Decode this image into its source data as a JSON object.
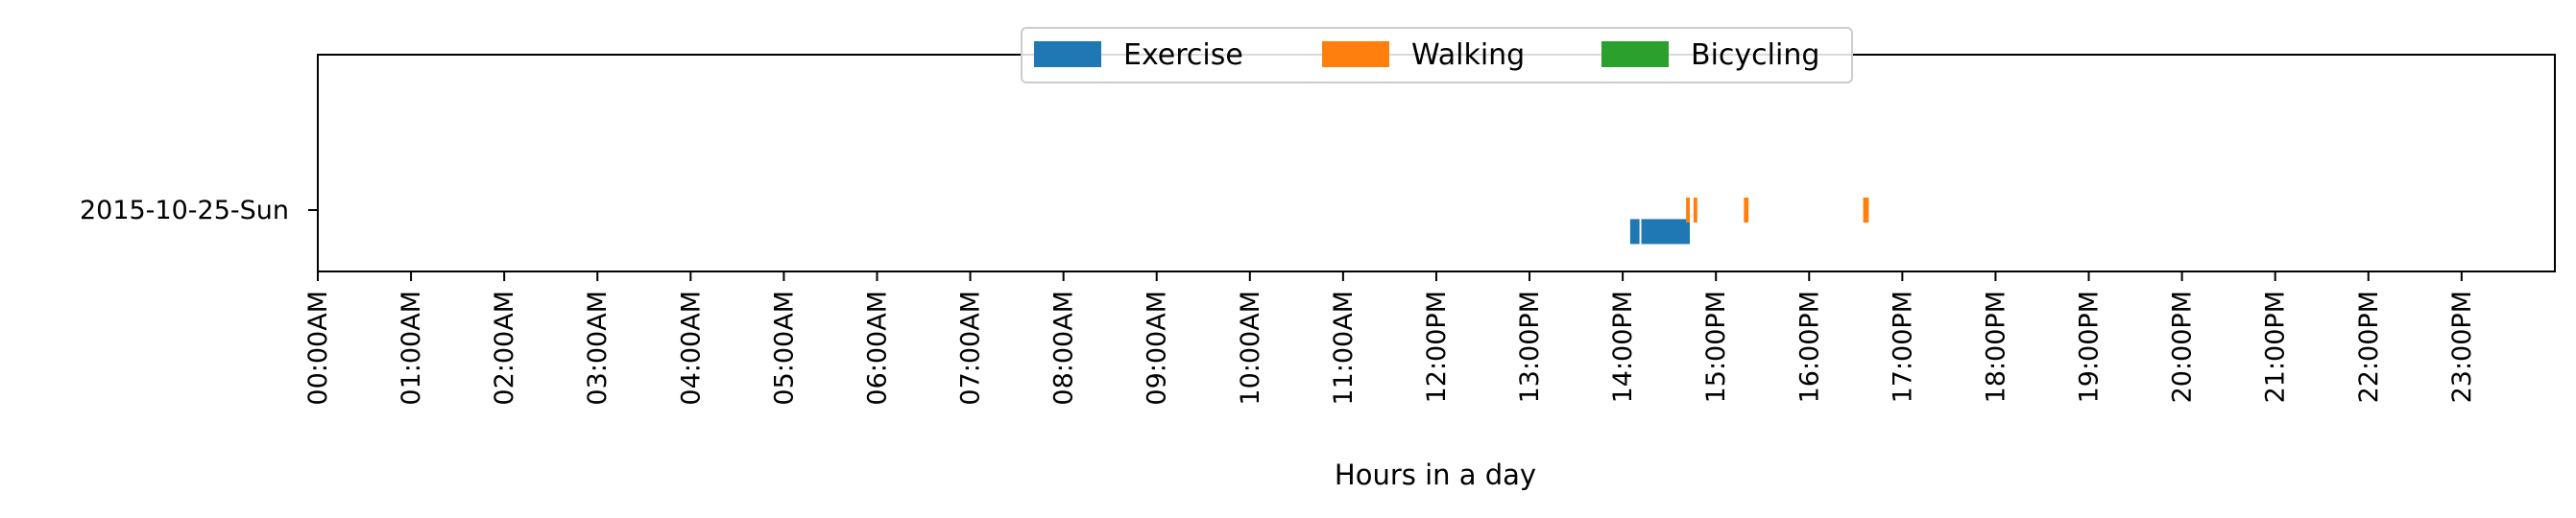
{
  "chart_data": {
    "type": "timeline",
    "xlabel": "Hours in a day",
    "ylabel": "",
    "xlim": [
      0,
      24
    ],
    "x_ticks": [
      {
        "value": 0,
        "label": "00:00AM"
      },
      {
        "value": 1,
        "label": "01:00AM"
      },
      {
        "value": 2,
        "label": "02:00AM"
      },
      {
        "value": 3,
        "label": "03:00AM"
      },
      {
        "value": 4,
        "label": "04:00AM"
      },
      {
        "value": 5,
        "label": "05:00AM"
      },
      {
        "value": 6,
        "label": "06:00AM"
      },
      {
        "value": 7,
        "label": "07:00AM"
      },
      {
        "value": 8,
        "label": "08:00AM"
      },
      {
        "value": 9,
        "label": "09:00AM"
      },
      {
        "value": 10,
        "label": "10:00AM"
      },
      {
        "value": 11,
        "label": "11:00AM"
      },
      {
        "value": 12,
        "label": "12:00PM"
      },
      {
        "value": 13,
        "label": "13:00PM"
      },
      {
        "value": 14,
        "label": "14:00PM"
      },
      {
        "value": 15,
        "label": "15:00PM"
      },
      {
        "value": 16,
        "label": "16:00PM"
      },
      {
        "value": 17,
        "label": "17:00PM"
      },
      {
        "value": 18,
        "label": "18:00PM"
      },
      {
        "value": 19,
        "label": "19:00PM"
      },
      {
        "value": 20,
        "label": "20:00PM"
      },
      {
        "value": 21,
        "label": "21:00PM"
      },
      {
        "value": 22,
        "label": "22:00PM"
      },
      {
        "value": 23,
        "label": "23:00PM"
      }
    ],
    "rows": [
      "2015-10-25-Sun"
    ],
    "legend_position": "top-center",
    "grid": false,
    "series": [
      {
        "name": "Exercise",
        "color": "#1f77b4",
        "row_offset": 0.35,
        "segments": [
          [
            14.08,
            14.18
          ],
          [
            14.2,
            14.72
          ]
        ]
      },
      {
        "name": "Walking",
        "color": "#ff7f0e",
        "row_offset": 0.0,
        "segments": [
          [
            14.68,
            14.72
          ],
          [
            14.76,
            14.8
          ],
          [
            15.3,
            15.35
          ],
          [
            16.58,
            16.64
          ]
        ]
      },
      {
        "name": "Bicycling",
        "color": "#2ca02c",
        "row_offset": 0.0,
        "segments": []
      }
    ]
  }
}
